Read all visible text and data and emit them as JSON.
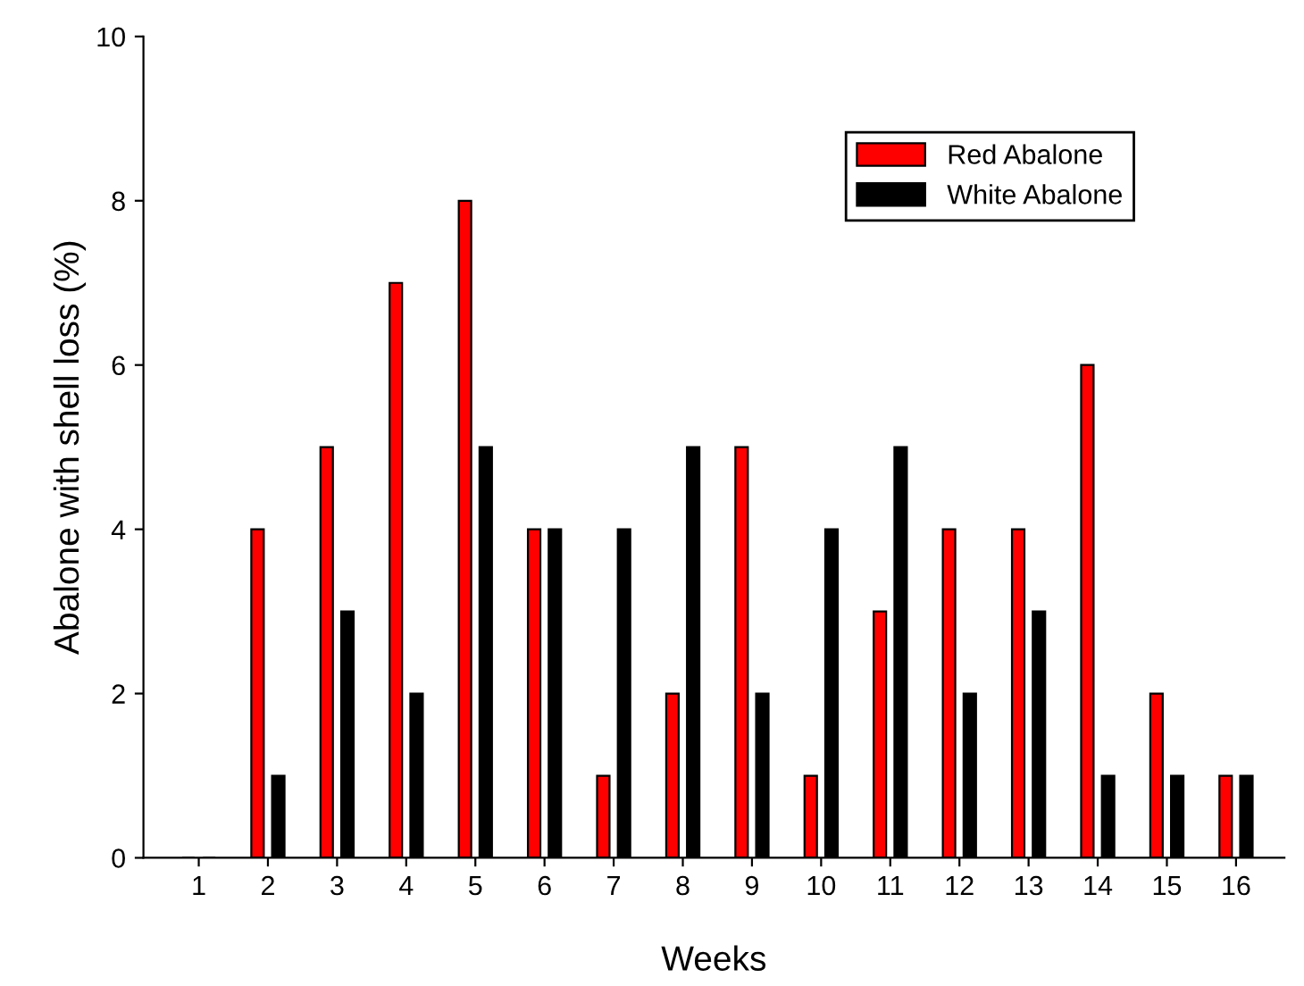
{
  "chart_data": {
    "type": "bar",
    "xlabel": "Weeks",
    "ylabel": "Abalone with shell loss (%)",
    "categories": [
      "1",
      "2",
      "3",
      "4",
      "5",
      "6",
      "7",
      "8",
      "9",
      "10",
      "11",
      "12",
      "13",
      "14",
      "15",
      "16"
    ],
    "series": [
      {
        "name": "Red Abalone",
        "color": "#ff0000",
        "values": [
          0,
          4,
          5,
          7,
          8,
          4,
          1,
          2,
          5,
          1,
          3,
          4,
          4,
          6,
          2,
          1
        ]
      },
      {
        "name": "White Abalone",
        "color": "#000000",
        "values": [
          0,
          1,
          3,
          2,
          5,
          4,
          4,
          5,
          2,
          4,
          5,
          2,
          3,
          1,
          1,
          1
        ]
      }
    ],
    "ylim": [
      0,
      10
    ],
    "yticks": [
      0,
      2,
      4,
      6,
      8,
      10
    ],
    "grid": false,
    "legend": "top right"
  }
}
